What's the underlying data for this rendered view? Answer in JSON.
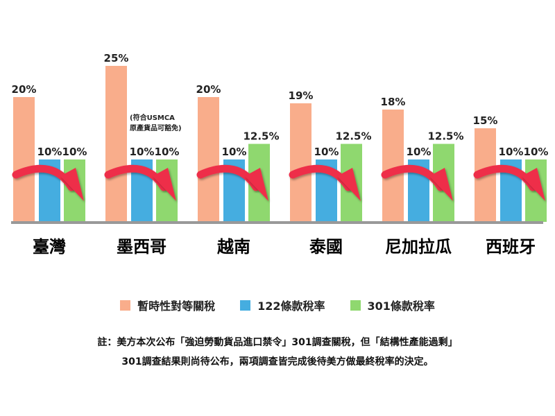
{
  "chart_data": {
    "type": "bar",
    "categories": [
      "臺灣",
      "墨西哥",
      "越南",
      "泰國",
      "尼加拉瓜",
      "西班牙"
    ],
    "series": [
      {
        "name": "暫時性對等關稅",
        "values": [
          20,
          25,
          20,
          19,
          18,
          15
        ],
        "labels": [
          "20%",
          "25%",
          "20%",
          "19%",
          "18%",
          "15%"
        ]
      },
      {
        "name": "122條款稅率",
        "values": [
          10,
          10,
          10,
          10,
          10,
          10
        ],
        "labels": [
          "10%",
          "10%",
          "10%",
          "10%",
          "10%",
          "10%"
        ]
      },
      {
        "name": "301條款稅率",
        "values": [
          10,
          10,
          12.5,
          12.5,
          12.5,
          10
        ],
        "labels": [
          "10%",
          "10%",
          "12.5%",
          "12.5%",
          "12.5%",
          "10%"
        ]
      }
    ],
    "colors": [
      "#f9ad8b",
      "#45ade0",
      "#8fd86f"
    ],
    "axis_color": "#999999",
    "arrow_color": "#ee2e4a",
    "ylim": [
      0,
      25
    ],
    "grid": false,
    "legend_position": "bottom",
    "annotation": {
      "category": "墨西哥",
      "lines": [
        "(符合USMCA",
        "原產貨品可豁免)"
      ]
    }
  },
  "note": {
    "line1": "註：美方本次公布「強迫勞動貨品進口禁令」301調查關稅，但「結構性產能過剩」",
    "line2": "301調查結果則尚待公布，兩項調查皆完成後待美方做最終稅率的決定。"
  }
}
